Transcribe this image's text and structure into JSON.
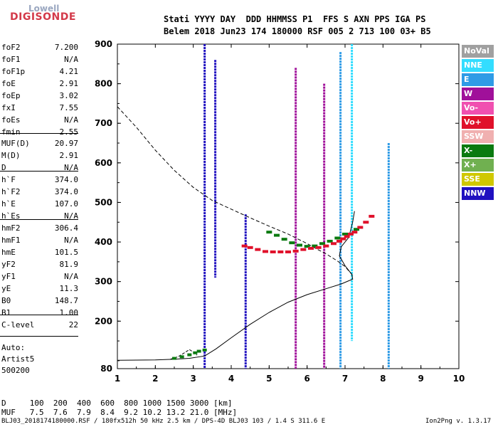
{
  "logo": {
    "line1": "Lowell",
    "line2": "DIGISONDE"
  },
  "header": {
    "line1": "Stati YYYY DAY  DDD HHMMSS P1  FFS S AXN PPS IGA PS",
    "line2": "Belem 2018 Jun23 174 180000 RSF 005 2 713 100 03+ B5"
  },
  "params_group1": [
    {
      "label": "foF2",
      "value": "7.200"
    },
    {
      "label": "foF1",
      "value": "N/A"
    },
    {
      "label": "foF1p",
      "value": "4.21"
    },
    {
      "label": "foE",
      "value": "2.91"
    },
    {
      "label": "foEp",
      "value": "3.02"
    },
    {
      "label": "fxI",
      "value": "7.55"
    },
    {
      "label": "foEs",
      "value": "N/A"
    },
    {
      "label": "fmin",
      "value": "2.55"
    }
  ],
  "params_group2": [
    {
      "label": "MUF(D)",
      "value": "20.97"
    },
    {
      "label": "M(D)",
      "value": "2.91"
    },
    {
      "label": "D",
      "value": "N/A"
    }
  ],
  "params_group3": [
    {
      "label": "h`F",
      "value": "374.0"
    },
    {
      "label": "h`F2",
      "value": "374.0"
    },
    {
      "label": "h`E",
      "value": "107.0"
    },
    {
      "label": "h`Es",
      "value": "N/A"
    }
  ],
  "params_group4": [
    {
      "label": "hmF2",
      "value": "306.4"
    },
    {
      "label": "hmF1",
      "value": "N/A"
    },
    {
      "label": "hmE",
      "value": "101.5"
    },
    {
      "label": "yF2",
      "value": "81.9"
    },
    {
      "label": "yF1",
      "value": "N/A"
    },
    {
      "label": "yE",
      "value": "11.3"
    },
    {
      "label": "B0",
      "value": "148.7"
    },
    {
      "label": "B1",
      "value": "1.00"
    }
  ],
  "params_group5": [
    {
      "label": "C-level",
      "value": "22"
    }
  ],
  "auto": {
    "line1": "Auto:",
    "line2": "Artist5",
    "line3": "500200"
  },
  "legend": [
    {
      "label": "NoVal",
      "color": "#a0a0a0"
    },
    {
      "label": "NNE",
      "color": "#33ddff"
    },
    {
      "label": "E",
      "color": "#2f9be6"
    },
    {
      "label": "W",
      "color": "#a0109a"
    },
    {
      "label": "Vo-",
      "color": "#f050b0"
    },
    {
      "label": "Vo+",
      "color": "#e0102a"
    },
    {
      "label": "SSW",
      "color": "#f0b0b0"
    },
    {
      "label": "X-",
      "color": "#0a7a10"
    },
    {
      "label": "X+",
      "color": "#70b050"
    },
    {
      "label": "SSE",
      "color": "#d0c800"
    },
    {
      "label": "NNW",
      "color": "#2010c0"
    }
  ],
  "bottom": {
    "d_row": "D     100  200  400  600  800 1000 1500 3000 [km]",
    "muf_row": "MUF   7.5  7.6  7.9  8.4  9.2 10.2 13.2 21.0 [MHz]"
  },
  "footer": {
    "left": "BLJ03_2018174180000.RSF / 180fx512h 50 kHz 2.5 km / DPS-4D BLJ03 103 / 1.4 S 311.6 E",
    "right": "Ion2Png v. 1.3.17"
  },
  "chart_data": {
    "type": "scatter",
    "xlim": [
      1,
      10
    ],
    "ylim": [
      80,
      900
    ],
    "x_ticks": [
      1,
      2,
      3,
      4,
      5,
      6,
      7,
      8,
      9,
      10
    ],
    "y_ticks": [
      80,
      200,
      300,
      400,
      500,
      600,
      700,
      800,
      900
    ],
    "grid": false,
    "vertical_traces": [
      {
        "x": 3.3,
        "y_from": 80,
        "y_to": 900,
        "color": "#2010c0"
      },
      {
        "x": 3.58,
        "y_from": 310,
        "y_to": 860,
        "color": "#2010c0"
      },
      {
        "x": 4.38,
        "y_from": 80,
        "y_to": 470,
        "color": "#2010c0"
      },
      {
        "x": 5.7,
        "y_from": 80,
        "y_to": 840,
        "color": "#a0109a"
      },
      {
        "x": 6.45,
        "y_from": 80,
        "y_to": 800,
        "color": "#a0109a"
      },
      {
        "x": 6.88,
        "y_from": 80,
        "y_to": 880,
        "color": "#2f9be6"
      },
      {
        "x": 7.18,
        "y_from": 150,
        "y_to": 900,
        "color": "#33ddff"
      },
      {
        "x": 8.15,
        "y_from": 80,
        "y_to": 650,
        "color": "#2f9be6"
      }
    ],
    "o_trace_points": [
      [
        4.35,
        390
      ],
      [
        4.5,
        386
      ],
      [
        4.7,
        381
      ],
      [
        4.9,
        376
      ],
      [
        5.1,
        375
      ],
      [
        5.3,
        375
      ],
      [
        5.5,
        375
      ],
      [
        5.7,
        377
      ],
      [
        5.9,
        381
      ],
      [
        6.1,
        384
      ],
      [
        6.3,
        386
      ],
      [
        6.5,
        390
      ],
      [
        6.7,
        396
      ],
      [
        6.85,
        402
      ],
      [
        6.95,
        408
      ],
      [
        7.05,
        414
      ],
      [
        7.15,
        420
      ],
      [
        7.25,
        425
      ],
      [
        7.4,
        437
      ],
      [
        7.55,
        450
      ],
      [
        7.7,
        465
      ]
    ],
    "x_trace_points": [
      [
        5.0,
        425
      ],
      [
        5.2,
        417
      ],
      [
        5.4,
        407
      ],
      [
        5.6,
        398
      ],
      [
        5.8,
        392
      ],
      [
        6.0,
        389
      ],
      [
        6.2,
        390
      ],
      [
        6.4,
        396
      ],
      [
        6.6,
        402
      ],
      [
        6.8,
        410
      ],
      [
        7.0,
        420
      ],
      [
        7.3,
        432
      ]
    ],
    "low_trace_points": [
      [
        2.5,
        106
      ],
      [
        2.7,
        110
      ],
      [
        2.9,
        115
      ],
      [
        3.05,
        120
      ],
      [
        3.15,
        124
      ],
      [
        3.3,
        127
      ]
    ],
    "profile_curve": [
      [
        1.0,
        101
      ],
      [
        2.0,
        102
      ],
      [
        2.5,
        104
      ],
      [
        2.9,
        106
      ],
      [
        3.3,
        112
      ],
      [
        3.6,
        130
      ],
      [
        4.0,
        158
      ],
      [
        4.5,
        192
      ],
      [
        5.0,
        222
      ],
      [
        5.5,
        248
      ],
      [
        6.0,
        267
      ],
      [
        6.5,
        282
      ],
      [
        6.9,
        294
      ],
      [
        7.1,
        302
      ],
      [
        7.2,
        306
      ],
      [
        7.18,
        318
      ],
      [
        7.0,
        340
      ],
      [
        6.85,
        365
      ],
      [
        6.9,
        388
      ],
      [
        7.1,
        412
      ],
      [
        7.2,
        450
      ],
      [
        7.25,
        478
      ]
    ],
    "model_curve": [
      [
        1.0,
        742
      ],
      [
        1.5,
        690
      ],
      [
        2.0,
        632
      ],
      [
        2.5,
        581
      ],
      [
        3.0,
        538
      ],
      [
        3.5,
        505
      ],
      [
        4.0,
        483
      ],
      [
        4.5,
        461
      ],
      [
        5.0,
        440
      ],
      [
        5.5,
        420
      ],
      [
        6.0,
        396
      ],
      [
        6.3,
        380
      ],
      [
        6.5,
        370
      ],
      [
        6.8,
        352
      ],
      [
        7.0,
        338
      ],
      [
        7.1,
        327
      ],
      [
        7.2,
        316
      ]
    ],
    "model_low_curve": [
      [
        2.4,
        104
      ],
      [
        2.6,
        110
      ],
      [
        2.8,
        122
      ],
      [
        2.9,
        128
      ],
      [
        3.0,
        122
      ],
      [
        3.1,
        114
      ]
    ]
  }
}
